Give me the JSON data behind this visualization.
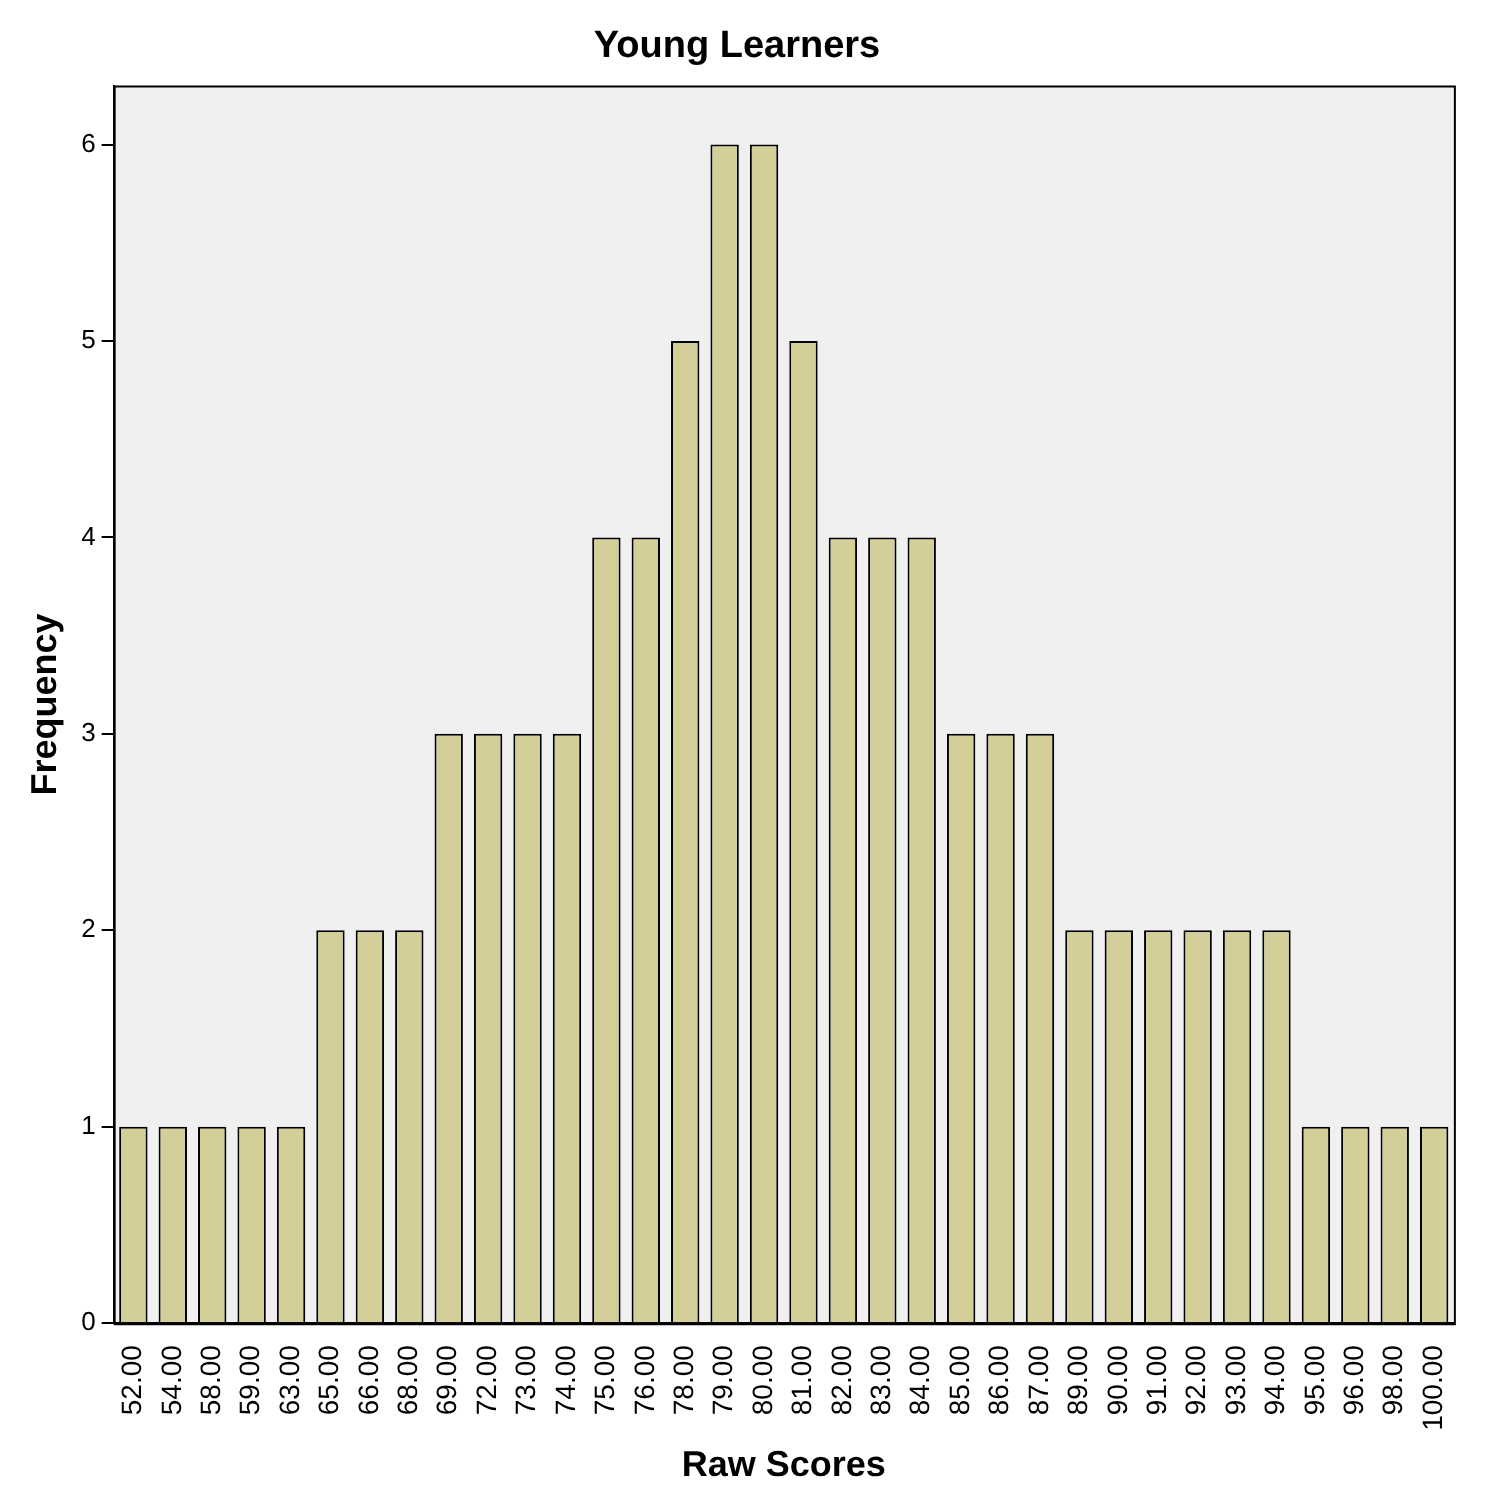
{
  "chart_data": {
    "type": "bar",
    "title": "Young Learners",
    "xlabel": "Raw Scores",
    "ylabel": "Frequency",
    "categories": [
      "52.00",
      "54.00",
      "58.00",
      "59.00",
      "63.00",
      "65.00",
      "66.00",
      "68.00",
      "69.00",
      "72.00",
      "73.00",
      "74.00",
      "75.00",
      "76.00",
      "78.00",
      "79.00",
      "80.00",
      "81.00",
      "82.00",
      "83.00",
      "84.00",
      "85.00",
      "86.00",
      "87.00",
      "89.00",
      "90.00",
      "91.00",
      "92.00",
      "93.00",
      "94.00",
      "95.00",
      "96.00",
      "98.00",
      "100.00"
    ],
    "values": [
      1,
      1,
      1,
      1,
      1,
      2,
      2,
      2,
      3,
      3,
      3,
      3,
      4,
      4,
      5,
      6,
      6,
      5,
      4,
      4,
      4,
      3,
      3,
      3,
      2,
      2,
      2,
      2,
      2,
      2,
      1,
      1,
      1,
      1
    ],
    "color": "#d4cf99",
    "ylim": [
      0,
      6.3
    ],
    "yticks": [
      0,
      1,
      2,
      3,
      4,
      5,
      6
    ],
    "grid": false,
    "legend": false
  }
}
